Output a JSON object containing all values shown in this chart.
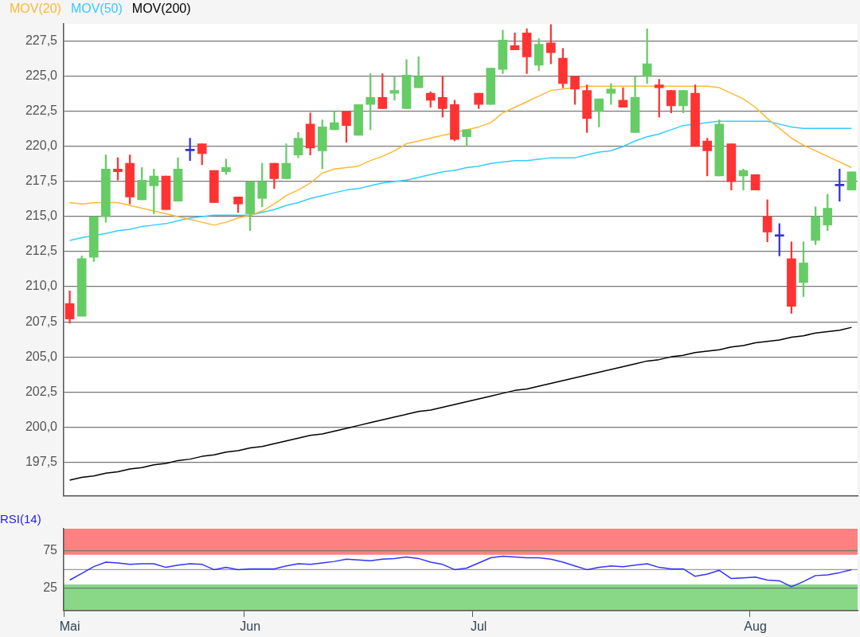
{
  "chart_data": [
    {
      "type": "candlestick",
      "legend": "top left",
      "grid": "y",
      "tick_labels": "y",
      "categories": [
        null,
        null,
        null,
        null,
        null,
        null,
        null,
        null,
        null,
        null,
        null,
        null,
        null,
        null,
        null,
        null,
        null,
        null,
        null,
        null,
        null,
        null,
        null,
        null,
        null,
        null,
        null,
        null,
        null,
        null,
        null,
        null,
        null,
        null,
        null,
        null,
        null,
        null,
        null,
        null,
        null,
        null,
        null,
        null,
        null,
        null,
        null,
        null,
        null,
        null,
        null,
        null,
        null,
        null,
        null,
        null,
        null,
        null,
        null,
        null,
        null,
        null,
        null,
        null,
        null,
        null
      ],
      "ylim": [
        195.1,
        228.75
      ],
      "yticks": [
        {
          "value": 197.5,
          "label": "197,5"
        },
        {
          "value": 200,
          "label": "200,0"
        },
        {
          "value": 202.5,
          "label": "202,5"
        },
        {
          "value": 205,
          "label": "205,0"
        },
        {
          "value": 207.5,
          "label": "207,5"
        },
        {
          "value": 210,
          "label": "210,0"
        },
        {
          "value": 212.5,
          "label": "212,5"
        },
        {
          "value": 215,
          "label": "215,0"
        },
        {
          "value": 217.5,
          "label": "217,5"
        },
        {
          "value": 220,
          "label": "220,0"
        },
        {
          "value": 222.5,
          "label": "222,5"
        },
        {
          "value": 225,
          "label": "225,0"
        },
        {
          "value": 227.5,
          "label": "227,5"
        }
      ],
      "ohlc": [
        [
          208.8,
          209.7,
          207.4,
          207.7
        ],
        [
          207.9,
          212.2,
          207.9,
          212.0
        ],
        [
          212.1,
          215.0,
          211.8,
          215.0
        ],
        [
          215.0,
          219.4,
          214.6,
          218.4
        ],
        [
          218.4,
          219.2,
          217.6,
          218.2
        ],
        [
          218.8,
          219.4,
          215.9,
          216.4
        ],
        [
          216.2,
          218.5,
          216.2,
          217.6
        ],
        [
          217.2,
          218.4,
          215.2,
          217.9
        ],
        [
          217.9,
          217.9,
          215.5,
          215.5
        ],
        [
          216.1,
          219.2,
          216.1,
          218.4
        ],
        [
          219.7,
          220.6,
          219.0,
          219.7
        ],
        [
          220.2,
          220.2,
          218.7,
          219.5
        ],
        [
          218.3,
          218.3,
          216.0,
          216.0
        ],
        [
          218.2,
          219.1,
          218.0,
          218.5
        ],
        [
          216.4,
          216.4,
          215.3,
          215.9
        ],
        [
          215.2,
          217.5,
          214.0,
          217.5
        ],
        [
          216.3,
          218.8,
          215.7,
          217.5
        ],
        [
          218.8,
          218.8,
          217.0,
          217.7
        ],
        [
          217.7,
          220.2,
          217.7,
          218.8
        ],
        [
          219.4,
          221.0,
          219.2,
          220.6
        ],
        [
          221.6,
          222.4,
          219.4,
          219.9
        ],
        [
          219.7,
          221.9,
          218.4,
          221.4
        ],
        [
          221.2,
          222.5,
          221.2,
          221.7
        ],
        [
          222.5,
          222.5,
          220.3,
          221.5
        ],
        [
          220.8,
          223.0,
          220.8,
          223.0
        ],
        [
          223.0,
          225.2,
          221.2,
          223.5
        ],
        [
          223.5,
          225.2,
          222.7,
          222.7
        ],
        [
          223.8,
          225.0,
          223.3,
          224.0
        ],
        [
          222.7,
          226.2,
          222.7,
          225.1
        ],
        [
          224.2,
          226.4,
          224.2,
          225.0
        ],
        [
          223.8,
          223.9,
          222.8,
          223.3
        ],
        [
          223.5,
          225.0,
          222.1,
          222.7
        ],
        [
          223.0,
          223.3,
          220.4,
          220.5
        ],
        [
          220.7,
          221.2,
          220.0,
          221.2
        ],
        [
          223.8,
          223.8,
          222.7,
          223.0
        ],
        [
          223.0,
          225.6,
          223.0,
          225.6
        ],
        [
          225.5,
          228.3,
          225.2,
          227.6
        ],
        [
          227.2,
          228.1,
          226.9,
          226.9
        ],
        [
          228.1,
          228.4,
          225.2,
          226.4
        ],
        [
          225.8,
          227.7,
          225.4,
          227.3
        ],
        [
          227.4,
          228.7,
          225.9,
          226.7
        ],
        [
          226.3,
          227.0,
          224.2,
          224.5
        ],
        [
          225.0,
          225.0,
          223.0,
          224.1
        ],
        [
          224.0,
          224.4,
          221.0,
          222.0
        ],
        [
          222.5,
          223.4,
          221.4,
          223.4
        ],
        [
          223.8,
          224.5,
          223.0,
          224.1
        ],
        [
          223.3,
          224.2,
          222.8,
          222.8
        ],
        [
          221.0,
          225.0,
          221.0,
          223.5
        ],
        [
          225.0,
          228.4,
          224.5,
          225.9
        ],
        [
          224.4,
          224.8,
          222.1,
          224.2
        ],
        [
          224.0,
          224.0,
          222.4,
          222.9
        ],
        [
          222.9,
          224.0,
          222.4,
          224.0
        ],
        [
          223.8,
          224.4,
          220.0,
          220.0
        ],
        [
          220.4,
          220.6,
          217.9,
          219.7
        ],
        [
          217.9,
          221.9,
          217.9,
          221.6
        ],
        [
          220.2,
          220.2,
          216.9,
          217.5
        ],
        [
          217.9,
          218.4,
          216.9,
          218.3
        ],
        [
          218.0,
          218.0,
          216.9,
          216.9
        ],
        [
          215.0,
          216.2,
          213.2,
          213.9
        ],
        [
          213.6,
          214.5,
          212.2,
          213.6
        ],
        [
          212.0,
          213.2,
          208.1,
          208.6
        ],
        [
          210.3,
          213.2,
          209.3,
          211.7
        ],
        [
          213.3,
          215.7,
          213.0,
          215.0
        ],
        [
          214.4,
          216.6,
          214.0,
          215.6
        ],
        [
          217.2,
          218.4,
          216.1,
          217.2
        ],
        [
          216.9,
          218.2,
          216.9,
          218.2
        ]
      ],
      "colors": [
        "#ff3333",
        "#66cc66",
        "#66cc66",
        "#66cc66",
        "#ff3333",
        "#ff3333",
        "#66cc66",
        "#66cc66",
        "#ff3333",
        "#66cc66",
        "#3333cc",
        "#ff3333",
        "#ff3333",
        "#66cc66",
        "#ff3333",
        "#66cc66",
        "#66cc66",
        "#ff3333",
        "#66cc66",
        "#66cc66",
        "#ff3333",
        "#66cc66",
        "#66cc66",
        "#ff3333",
        "#66cc66",
        "#66cc66",
        "#ff3333",
        "#66cc66",
        "#66cc66",
        "#66cc66",
        "#ff3333",
        "#ff3333",
        "#ff3333",
        "#66cc66",
        "#ff3333",
        "#66cc66",
        "#66cc66",
        "#ff3333",
        "#ff3333",
        "#66cc66",
        "#ff3333",
        "#ff3333",
        "#ff3333",
        "#ff3333",
        "#66cc66",
        "#66cc66",
        "#ff3333",
        "#66cc66",
        "#66cc66",
        "#ff3333",
        "#ff3333",
        "#66cc66",
        "#ff3333",
        "#ff3333",
        "#66cc66",
        "#ff3333",
        "#66cc66",
        "#ff3333",
        "#ff3333",
        "#3333cc",
        "#ff3333",
        "#66cc66",
        "#66cc66",
        "#66cc66",
        "#3333cc",
        "#66cc66"
      ],
      "series": [
        {
          "type": "line",
          "name": "MOV(20)",
          "color": "#ffb833",
          "values": [
            216.0,
            215.9,
            216.0,
            null,
            216.0,
            215.8,
            215.6,
            215.4,
            215.2,
            215.0,
            214.8,
            214.6,
            214.4,
            214.6,
            214.9,
            215.1,
            215.4,
            215.9,
            216.5,
            216.9,
            217.4,
            218.1,
            218.4,
            218.5,
            218.6,
            219.0,
            219.3,
            219.7,
            220.2,
            220.4,
            220.6,
            220.8,
            null,
            221.2,
            221.4,
            221.7,
            222.4,
            222.8,
            223.2,
            223.6,
            224.0,
            224.1,
            null,
            224.3,
            224.3,
            224.3,
            224.3,
            224.3,
            224.3,
            null,
            224.3,
            224.3,
            224.3,
            224.3,
            224.2,
            223.8,
            223.4,
            222.8,
            222.0,
            221.3,
            220.6,
            220.1,
            219.7,
            219.3,
            218.9,
            218.5
          ]
        },
        {
          "type": "line",
          "name": "MOV(50)",
          "color": "#33ccff",
          "values": [
            213.3,
            213.5,
            null,
            213.8,
            214.0,
            214.1,
            214.3,
            214.4,
            214.5,
            214.7,
            214.9,
            215.0,
            215.1,
            215.1,
            215.1,
            215.1,
            215.3,
            215.5,
            215.8,
            216.0,
            216.3,
            216.5,
            216.7,
            216.9,
            217.0,
            217.2,
            217.4,
            217.5,
            217.6,
            217.8,
            218.0,
            218.2,
            218.3,
            218.5,
            218.6,
            218.8,
            218.9,
            219.0,
            219.0,
            219.1,
            219.2,
            219.2,
            219.2,
            219.4,
            219.6,
            219.7,
            220.0,
            220.4,
            220.7,
            220.9,
            221.2,
            221.5,
            null,
            221.7,
            221.8,
            221.8,
            221.8,
            221.8,
            221.8,
            221.6,
            221.4,
            221.3,
            221.3,
            221.3,
            221.3,
            221.3
          ]
        },
        {
          "type": "line",
          "name": "MOV(200)",
          "color": "#000000",
          "values": [
            196.2,
            196.4,
            196.5,
            196.7,
            196.8,
            197.0,
            197.1,
            197.3,
            197.4,
            197.6,
            197.7,
            197.9,
            198.0,
            198.2,
            198.3,
            198.5,
            198.6,
            198.8,
            199.0,
            199.2,
            199.4,
            199.5,
            199.7,
            199.9,
            200.1,
            200.3,
            200.5,
            200.7,
            200.9,
            201.1,
            201.2,
            201.4,
            201.6,
            201.8,
            202.0,
            202.2,
            202.4,
            202.6,
            202.7,
            202.9,
            203.1,
            203.3,
            203.5,
            203.7,
            203.9,
            204.1,
            204.3,
            204.5,
            204.7,
            204.8,
            205.0,
            205.1,
            205.3,
            205.4,
            205.5,
            205.7,
            205.8,
            206.0,
            206.1,
            206.2,
            206.4,
            206.5,
            206.7,
            206.8,
            206.9,
            207.1
          ]
        }
      ]
    },
    {
      "type": "line",
      "title": "RSI(14)",
      "grid": "y",
      "categories": [
        "Mai",
        null,
        null,
        null,
        null,
        null,
        null,
        null,
        null,
        null,
        null,
        null,
        null,
        null,
        null,
        "Jun",
        null,
        null,
        null,
        null,
        null,
        null,
        null,
        null,
        null,
        null,
        null,
        null,
        null,
        null,
        null,
        null,
        null,
        null,
        "Jul",
        null,
        null,
        null,
        null,
        null,
        null,
        null,
        null,
        null,
        null,
        null,
        null,
        null,
        null,
        null,
        null,
        null,
        null,
        null,
        null,
        null,
        null,
        "Aug",
        null,
        null,
        null,
        null,
        null,
        null,
        null,
        null
      ],
      "ylim": [
        -5,
        105
      ],
      "yticks": [
        25,
        75
      ],
      "bands": [
        {
          "axis": "y",
          "from": 70,
          "to": 105,
          "color": "#ff8080"
        },
        {
          "axis": "y",
          "from": -5,
          "to": 30,
          "color": "#88d888"
        }
      ],
      "ref_lines": [
        {
          "axis": "y",
          "value": 50,
          "color": "#999999"
        }
      ],
      "series": [
        {
          "color": "#3333ff",
          "values": [
            36,
            45,
            54,
            60,
            59,
            57,
            58,
            58,
            53,
            56,
            58,
            57,
            50,
            53,
            50,
            51,
            51,
            51,
            55,
            58,
            57,
            59,
            61,
            64,
            63,
            62,
            64,
            65,
            67,
            65,
            60,
            57,
            50,
            52,
            59,
            66,
            68,
            67,
            66,
            66,
            64,
            60,
            55,
            50,
            53,
            55,
            54,
            56,
            58,
            53,
            51,
            51,
            41,
            44,
            49,
            38,
            39,
            40,
            36,
            35,
            27,
            34,
            42,
            43,
            46,
            50
          ]
        }
      ]
    }
  ]
}
